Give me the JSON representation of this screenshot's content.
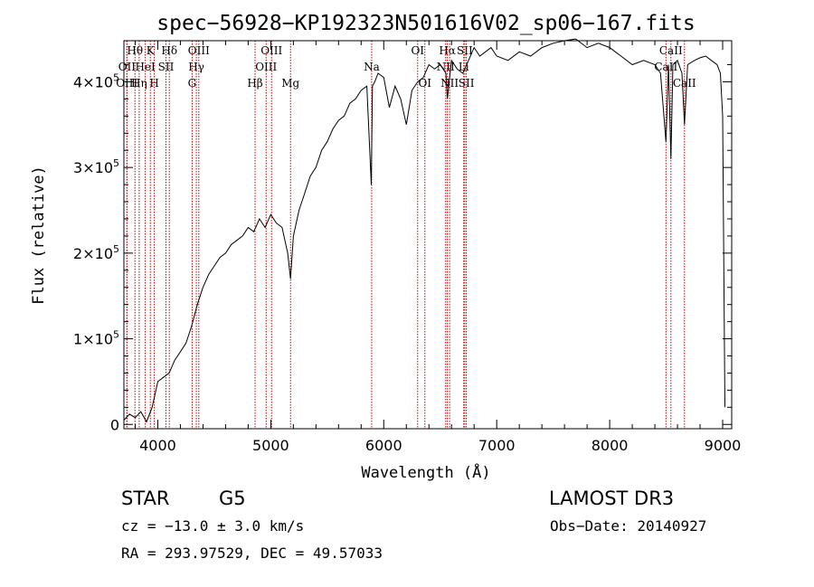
{
  "chart_data": {
    "type": "line",
    "title": "spec−56928−KP192323N501616V02_sp06−167.fits",
    "xlabel": "Wavelength (Å)",
    "ylabel": "Flux (relative)",
    "xlim": [
      3700,
      9080
    ],
    "ylim": [
      -5000,
      448000
    ],
    "x_ticks": [
      4000,
      5000,
      6000,
      7000,
      8000,
      9000
    ],
    "x_tick_labels": [
      "4000",
      "5000",
      "6000",
      "7000",
      "8000",
      "9000"
    ],
    "y_ticks": [
      0,
      100000,
      200000,
      300000,
      400000
    ],
    "y_tick_labels": [
      {
        "mantissa": "0",
        "exp": ""
      },
      {
        "mantissa": "1×10",
        "exp": "5"
      },
      {
        "mantissa": "2×10",
        "exp": "5"
      },
      {
        "mantissa": "3×10",
        "exp": "5"
      },
      {
        "mantissa": "4×10",
        "exp": "5"
      }
    ],
    "series": [
      {
        "name": "spectrum",
        "x": [
          3700,
          3750,
          3800,
          3850,
          3900,
          3950,
          4000,
          4050,
          4100,
          4150,
          4200,
          4250,
          4300,
          4350,
          4400,
          4450,
          4500,
          4550,
          4600,
          4650,
          4700,
          4750,
          4800,
          4850,
          4900,
          4950,
          5000,
          5050,
          5100,
          5150,
          5175,
          5200,
          5250,
          5300,
          5350,
          5400,
          5450,
          5500,
          5550,
          5600,
          5650,
          5700,
          5750,
          5800,
          5850,
          5890,
          5900,
          5920,
          5950,
          6000,
          6050,
          6100,
          6150,
          6200,
          6250,
          6300,
          6350,
          6400,
          6450,
          6500,
          6550,
          6563,
          6600,
          6650,
          6700,
          6750,
          6800,
          6850,
          6900,
          6950,
          7000,
          7100,
          7200,
          7300,
          7400,
          7500,
          7600,
          7700,
          7800,
          7900,
          8000,
          8050,
          8100,
          8200,
          8300,
          8400,
          8450,
          8498,
          8520,
          8542,
          8560,
          8600,
          8640,
          8662,
          8690,
          8750,
          8800,
          8850,
          8900,
          8950,
          8980,
          9000,
          9020
        ],
        "y": [
          5000,
          12000,
          8000,
          15000,
          3000,
          20000,
          50000,
          55000,
          60000,
          75000,
          85000,
          95000,
          115000,
          140000,
          160000,
          175000,
          185000,
          195000,
          200000,
          210000,
          215000,
          220000,
          230000,
          225000,
          240000,
          230000,
          245000,
          235000,
          230000,
          200000,
          170000,
          220000,
          250000,
          270000,
          290000,
          300000,
          320000,
          330000,
          345000,
          355000,
          360000,
          375000,
          380000,
          390000,
          395000,
          280000,
          395000,
          400000,
          410000,
          405000,
          370000,
          395000,
          380000,
          350000,
          390000,
          400000,
          405000,
          420000,
          415000,
          420000,
          410000,
          380000,
          425000,
          415000,
          410000,
          425000,
          440000,
          430000,
          435000,
          440000,
          430000,
          425000,
          435000,
          430000,
          440000,
          445000,
          448000,
          450000,
          440000,
          445000,
          440000,
          435000,
          430000,
          420000,
          425000,
          420000,
          410000,
          330000,
          420000,
          310000,
          420000,
          425000,
          410000,
          350000,
          420000,
          425000,
          428000,
          430000,
          425000,
          420000,
          410000,
          360000,
          20000
        ]
      }
    ],
    "line_markers": [
      {
        "label": "Hθ",
        "wl": 3798,
        "row": 0
      },
      {
        "label": "OII",
        "wl": 3727,
        "row": 1
      },
      {
        "label": "OIII",
        "wl": 3726,
        "row": 2
      },
      {
        "label": "K",
        "wl": 3934,
        "row": 0
      },
      {
        "label": "HeI",
        "wl": 3889,
        "row": 1
      },
      {
        "label": "Hη",
        "wl": 3835,
        "row": 2
      },
      {
        "label": "SII",
        "wl": 4072,
        "row": 1
      },
      {
        "label": "H",
        "wl": 3969,
        "row": 2
      },
      {
        "label": "Hδ",
        "wl": 4102,
        "row": 0
      },
      {
        "label": "OIII",
        "wl": 4363,
        "row": 0
      },
      {
        "label": "Hγ",
        "wl": 4341,
        "row": 1
      },
      {
        "label": "G",
        "wl": 4304,
        "row": 2
      },
      {
        "label": "Hβ",
        "wl": 4861,
        "row": 2
      },
      {
        "label": "OIII",
        "wl": 5007,
        "row": 0
      },
      {
        "label": "OIII",
        "wl": 4959,
        "row": 1
      },
      {
        "label": "Mg",
        "wl": 5175,
        "row": 2
      },
      {
        "label": "Na",
        "wl": 5893,
        "row": 1
      },
      {
        "label": "OI",
        "wl": 6300,
        "row": 0
      },
      {
        "label": "OI",
        "wl": 6364,
        "row": 2
      },
      {
        "label": "Hα",
        "wl": 6563,
        "row": 0
      },
      {
        "label": "NII",
        "wl": 6548,
        "row": 1
      },
      {
        "label": "NII",
        "wl": 6583,
        "row": 2
      },
      {
        "label": "SII",
        "wl": 6717,
        "row": 0
      },
      {
        "label": "Li",
        "wl": 6708,
        "row": 1
      },
      {
        "label": "SII",
        "wl": 6731,
        "row": 2
      },
      {
        "label": "CaII",
        "wl": 8542,
        "row": 0
      },
      {
        "label": "CaII",
        "wl": 8498,
        "row": 1
      },
      {
        "label": "CaII",
        "wl": 8662,
        "row": 2
      }
    ],
    "marker_color": "#c00000"
  },
  "info": {
    "object_class": "STAR",
    "subclass": "G5",
    "survey": "LAMOST DR3",
    "cz": "cz = −13.0 ± 3.0 km/s",
    "obs_date": "Obs−Date: 20140927",
    "coords": "RA = 293.97529, DEC =  49.57033"
  }
}
